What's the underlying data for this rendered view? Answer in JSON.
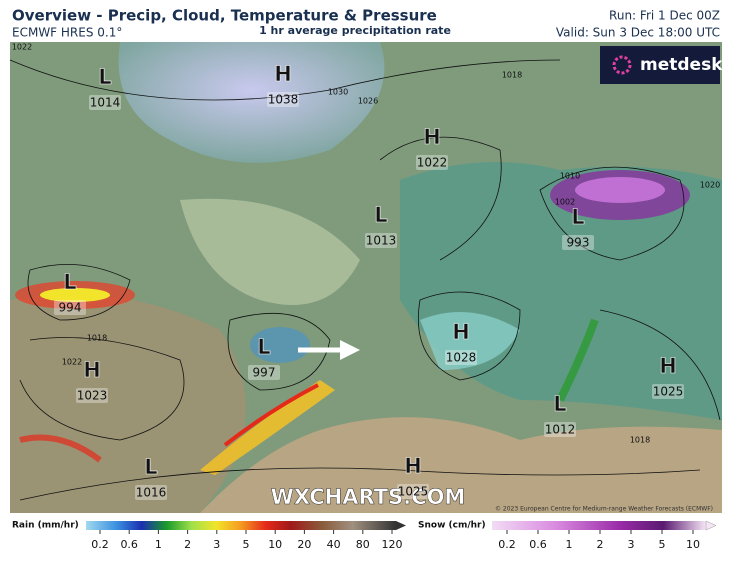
{
  "header": {
    "title": "Overview - Precip, Cloud, Temperature & Pressure",
    "model": "ECMWF HRES 0.1°",
    "subtitle": "1 hr average precipitation rate",
    "run": "Run: Fri 1 Dec 00Z",
    "valid": "Valid: Sun 3 Dec 18:00 UTC"
  },
  "brand": "metdesk",
  "watermark": "WXCHARTS.COM",
  "copyright": "© 2023 European Centre for Medium-range Weather Forecasts (ECMWF)",
  "pressure_centers": [
    {
      "kind": "L",
      "value": 1014
    },
    {
      "kind": "H",
      "value": 1038
    },
    {
      "kind": "H",
      "value": 1022
    },
    {
      "kind": "L",
      "value": 1013
    },
    {
      "kind": "L",
      "value": 993
    },
    {
      "kind": "L",
      "value": 994
    },
    {
      "kind": "H",
      "value": 1028
    },
    {
      "kind": "L",
      "value": 997
    },
    {
      "kind": "H",
      "value": 1023
    },
    {
      "kind": "H",
      "value": 1025
    },
    {
      "kind": "L",
      "value": 1012
    },
    {
      "kind": "L",
      "value": 1016
    },
    {
      "kind": "H",
      "value": 1025
    }
  ],
  "isobar_labels": [
    1022,
    1018,
    1030,
    1026,
    1010,
    1002,
    1018,
    1022,
    1018,
    1020
  ],
  "legend": {
    "rain": {
      "label": "Rain (mm/hr)",
      "ticks": [
        0.2,
        0.6,
        1,
        2,
        3,
        5,
        10,
        20,
        40,
        80,
        120
      ]
    },
    "snow": {
      "label": "Snow (cm/hr)",
      "ticks": [
        0.2,
        0.6,
        1,
        2,
        3,
        5,
        10
      ]
    }
  }
}
